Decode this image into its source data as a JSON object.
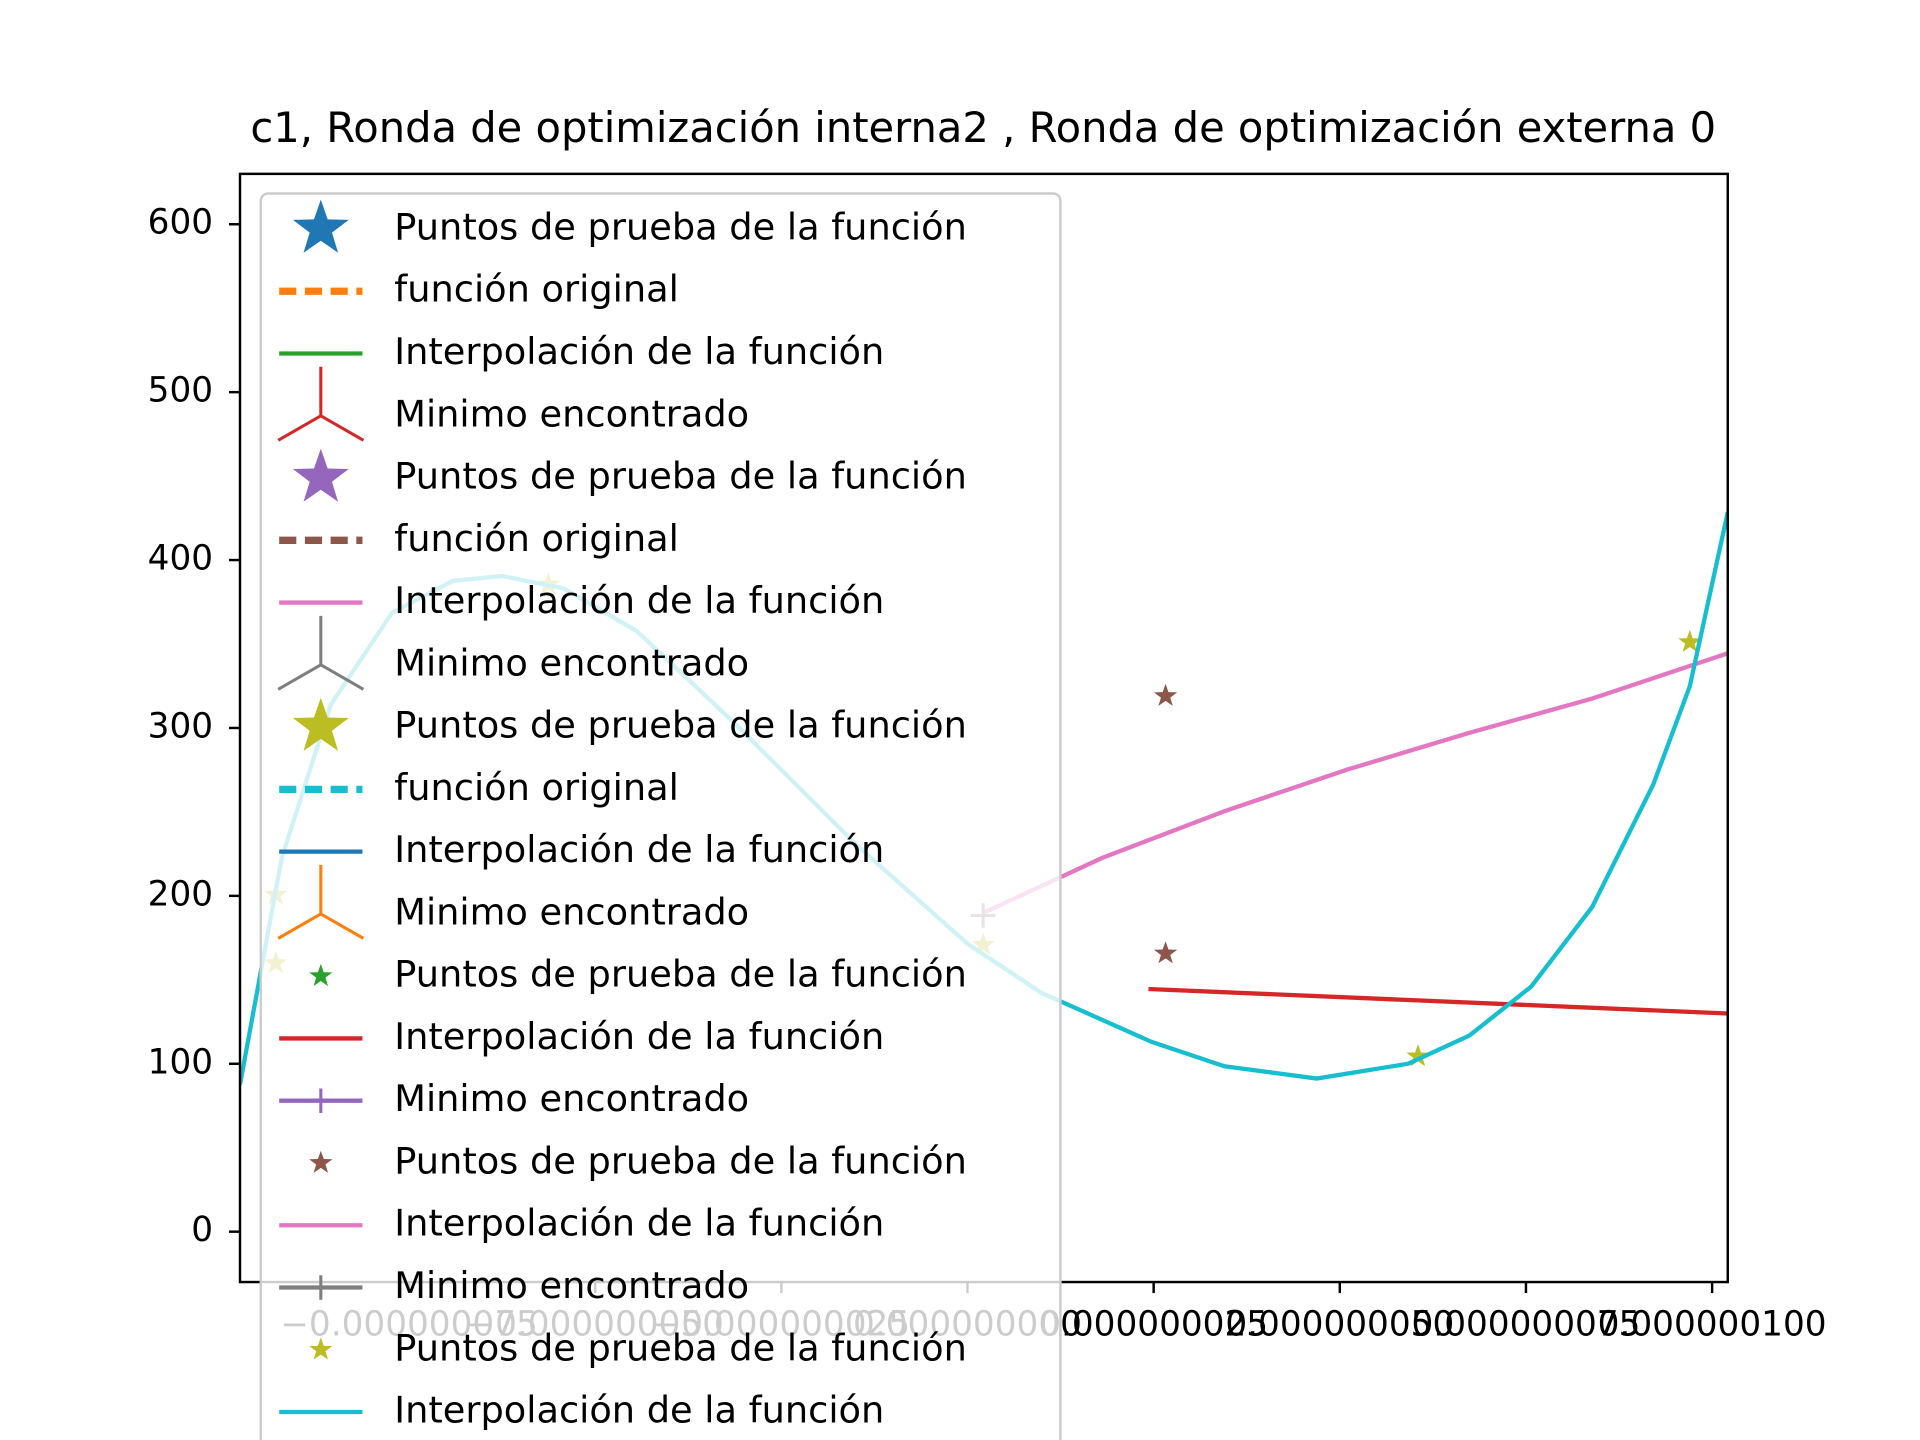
{
  "chart_data": {
    "type": "line",
    "title": "c1, Ronda de optimización interna2 , Ronda de optimización externa 0",
    "xlim": [
      -9.77e-08,
      1.021e-07
    ],
    "ylim": [
      -30,
      630
    ],
    "xticks": [
      {
        "value": -7.5e-08,
        "label": "−0.000000075"
      },
      {
        "value": -5e-08,
        "label": "−0.000000050"
      },
      {
        "value": -2.5e-08,
        "label": "−0.000000025"
      },
      {
        "value": 0,
        "label": "0.000000000"
      },
      {
        "value": 2.5e-08,
        "label": "0.000000025"
      },
      {
        "value": 5e-08,
        "label": "0.000000050"
      },
      {
        "value": 7.5e-08,
        "label": "0.000000075"
      },
      {
        "value": 1e-07,
        "label": "0.000000100"
      }
    ],
    "yticks": [
      0,
      100,
      200,
      300,
      400,
      500,
      600
    ],
    "legend": "upper left",
    "series": [
      {
        "name": "Puntos de prueba de la función",
        "color": "#1f77b4",
        "marker": "star",
        "markersize": 24,
        "linestyle": "none"
      },
      {
        "name": "función original",
        "color": "#ff7f0e",
        "marker": "none",
        "linestyle": "dashed"
      },
      {
        "name": "Interpolación de la función",
        "color": "#2ca02c",
        "marker": "none",
        "linestyle": "solid"
      },
      {
        "name": "Minimo encontrado",
        "color": "#d62728",
        "marker": "tri",
        "markersize": 40,
        "linestyle": "none"
      },
      {
        "name": "Puntos de prueba de la función",
        "color": "#9467bd",
        "marker": "star",
        "markersize": 24,
        "linestyle": "none"
      },
      {
        "name": "función original",
        "color": "#8c564b",
        "marker": "none",
        "linestyle": "dashed"
      },
      {
        "name": "Interpolación de la función",
        "color": "#e377c2",
        "marker": "none",
        "linestyle": "solid"
      },
      {
        "name": "Minimo encontrado",
        "color": "#7f7f7f",
        "marker": "tri",
        "markersize": 40,
        "linestyle": "none"
      },
      {
        "name": "Puntos de prueba de la función",
        "color": "#bcbd22",
        "marker": "star",
        "markersize": 24,
        "linestyle": "none"
      },
      {
        "name": "función original",
        "color": "#17becf",
        "marker": "none",
        "linestyle": "dashed"
      },
      {
        "name": "Interpolación de la función",
        "color": "#1f77b4",
        "marker": "none",
        "linestyle": "solid"
      },
      {
        "name": "Minimo encontrado",
        "color": "#ff7f0e",
        "marker": "tri",
        "markersize": 40,
        "linestyle": "none"
      },
      {
        "name": "Puntos de prueba de la función",
        "color": "#2ca02c",
        "marker": "star",
        "markersize": 10,
        "linestyle": "none"
      },
      {
        "name": "Interpolación de la función",
        "color": "#d62728",
        "marker": "none",
        "linestyle": "solid",
        "x": [
          2.43e-08,
          1.021e-07
        ],
        "values": [
          144.5,
          129.9
        ]
      },
      {
        "name": "Minimo encontrado",
        "color": "#9467bd",
        "marker": "plus",
        "markersize": 10,
        "linestyle": "solid"
      },
      {
        "name": "Puntos de prueba de la función",
        "color": "#8c564b",
        "marker": "star",
        "markersize": 10,
        "linestyle": "none",
        "x": [
          2.66e-08,
          2.66e-08
        ],
        "values": [
          319,
          165.7
        ]
      },
      {
        "name": "Interpolación de la función",
        "color": "#e377c2",
        "marker": "none",
        "linestyle": "solid",
        "x": [
          2.1e-09,
          1.81e-08,
          3.45e-08,
          5.1e-08,
          6.74e-08,
          8.39e-08,
          1.021e-07
        ],
        "values": [
          189.8,
          222.6,
          250.4,
          275.2,
          297.1,
          317.5,
          344.5
        ]
      },
      {
        "name": "Minimo encontrado",
        "color": "#7f7f7f",
        "marker": "plus",
        "markersize": 10,
        "linestyle": "solid",
        "x": [
          2.1e-09
        ],
        "values": [
          188.3
        ]
      },
      {
        "name": "Puntos de prueba de la función",
        "color": "#bcbd22",
        "marker": "star",
        "markersize": 10,
        "linestyle": "none",
        "x": [
          -9.29e-08,
          -9.29e-08,
          -5.63e-08,
          2.1e-09,
          6.05e-08,
          9.7e-08
        ],
        "values": [
          159.9,
          200.7,
          385.4,
          170.8,
          104.4,
          351.1
        ]
      },
      {
        "name": "Interpolación de la función",
        "color": "#17becf",
        "marker": "none",
        "linestyle": "solid",
        "x": [
          -9.77e-08,
          -9.21e-08,
          -8.55e-08,
          -7.73e-08,
          -6.91e-08,
          -6.25e-08,
          -5.43e-08,
          -4.44e-08,
          -3.13e-08,
          -1.48e-08,
          0,
          9.9e-09,
          2.47e-08,
          3.45e-08,
          4.69e-08,
          5.92e-08,
          6.74e-08,
          7.57e-08,
          8.39e-08,
          9.21e-08,
          9.7e-08,
          1.021e-07
        ],
        "values": [
          87.6,
          222.6,
          313.9,
          368.6,
          387.6,
          390.5,
          383.2,
          357.7,
          302.9,
          229.9,
          171.5,
          142.3,
          113.1,
          98.5,
          91.2,
          100,
          116.8,
          146,
          193.4,
          266.4,
          324.8,
          428.5
        ]
      }
    ]
  }
}
